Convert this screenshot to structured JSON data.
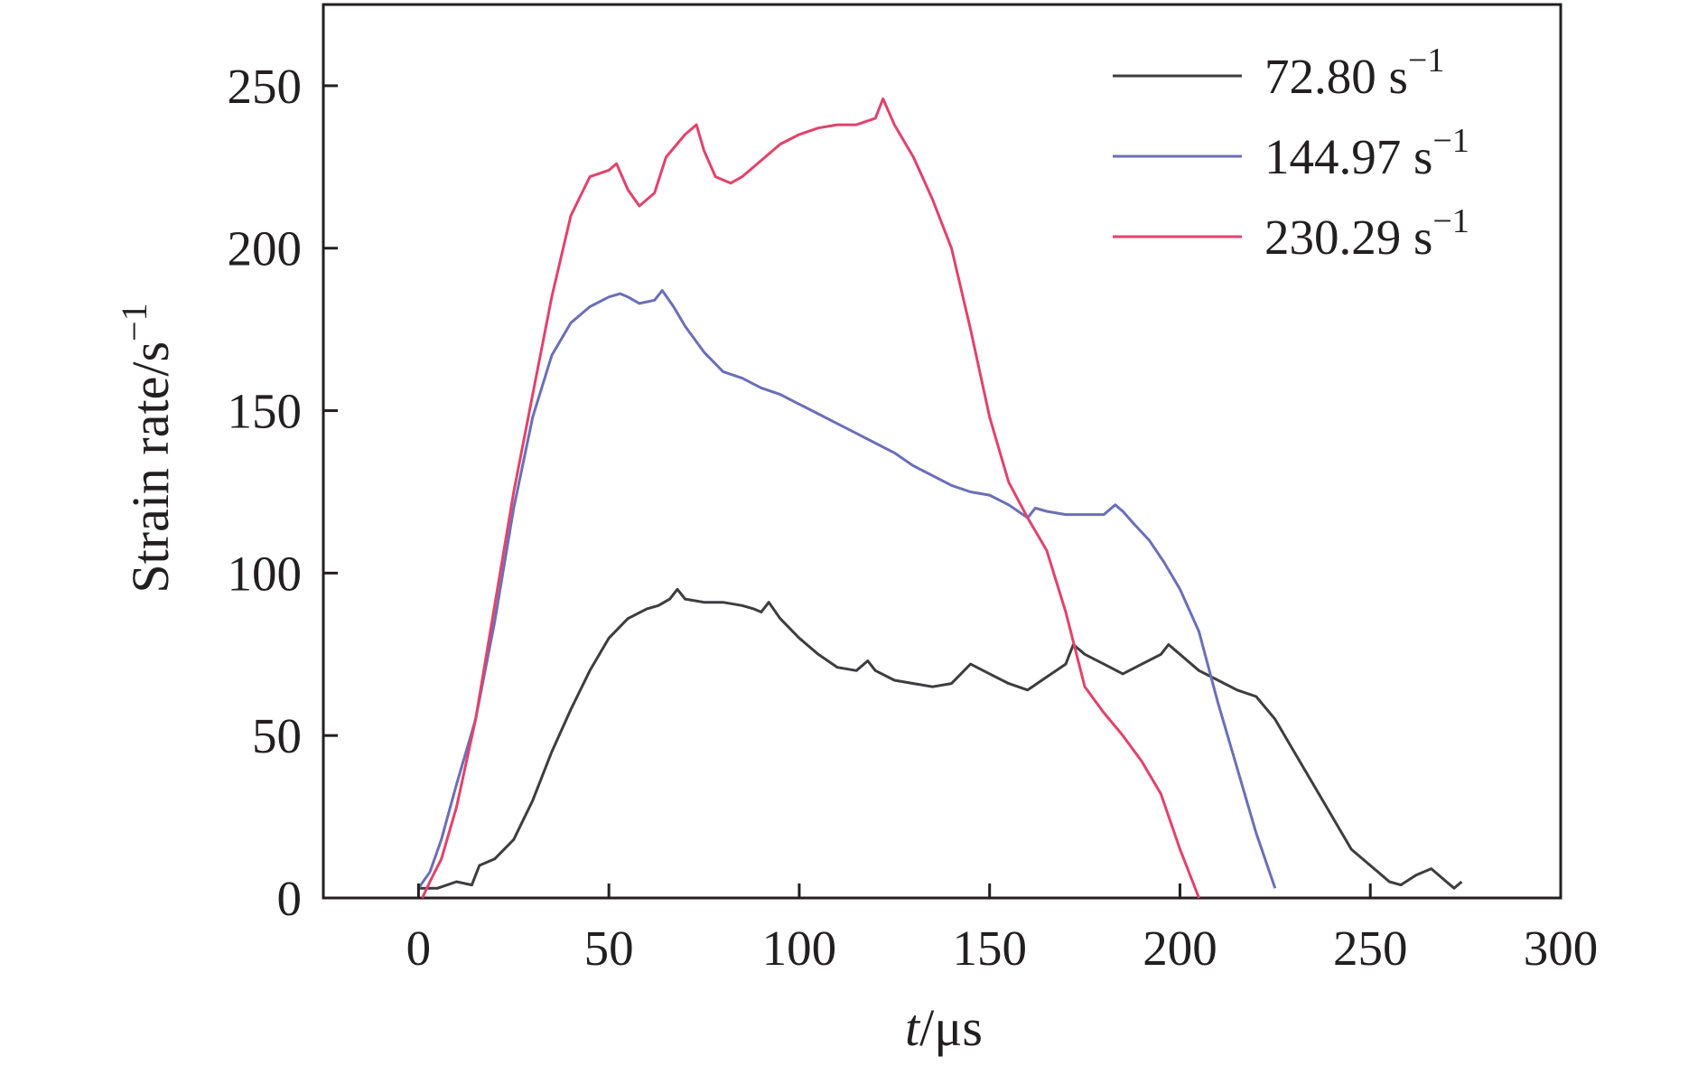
{
  "chart_data": {
    "type": "line",
    "xlabel": {
      "var": "t",
      "unit": "/μs"
    },
    "ylabel": {
      "text": "Strain rate/s",
      "sup": "−1"
    },
    "xlim": [
      -25,
      300
    ],
    "ylim": [
      0,
      275
    ],
    "x_ticks": [
      "0",
      "50",
      "100",
      "150",
      "200",
      "250",
      "300"
    ],
    "y_ticks": [
      "0",
      "50",
      "100",
      "150",
      "200",
      "250"
    ],
    "grid": false,
    "legend_position": "top-right",
    "series": [
      {
        "name": "72.80 s",
        "name_sup": "−1",
        "color": "#3d3d40",
        "points": [
          [
            0,
            3
          ],
          [
            5,
            3
          ],
          [
            10,
            5
          ],
          [
            14,
            4
          ],
          [
            16,
            10
          ],
          [
            20,
            12
          ],
          [
            25,
            18
          ],
          [
            30,
            30
          ],
          [
            35,
            45
          ],
          [
            40,
            58
          ],
          [
            45,
            70
          ],
          [
            50,
            80
          ],
          [
            55,
            86
          ],
          [
            60,
            89
          ],
          [
            63,
            90
          ],
          [
            66,
            92
          ],
          [
            68,
            95
          ],
          [
            70,
            92
          ],
          [
            75,
            91
          ],
          [
            80,
            91
          ],
          [
            85,
            90
          ],
          [
            88,
            89
          ],
          [
            90,
            88
          ],
          [
            92,
            91
          ],
          [
            95,
            86
          ],
          [
            100,
            80
          ],
          [
            105,
            75
          ],
          [
            110,
            71
          ],
          [
            115,
            70
          ],
          [
            118,
            73
          ],
          [
            120,
            70
          ],
          [
            125,
            67
          ],
          [
            130,
            66
          ],
          [
            135,
            65
          ],
          [
            140,
            66
          ],
          [
            145,
            72
          ],
          [
            150,
            69
          ],
          [
            155,
            66
          ],
          [
            160,
            64
          ],
          [
            165,
            68
          ],
          [
            170,
            72
          ],
          [
            172,
            78
          ],
          [
            175,
            75
          ],
          [
            180,
            72
          ],
          [
            185,
            69
          ],
          [
            190,
            72
          ],
          [
            195,
            75
          ],
          [
            197,
            78
          ],
          [
            200,
            75
          ],
          [
            205,
            70
          ],
          [
            210,
            67
          ],
          [
            215,
            64
          ],
          [
            220,
            62
          ],
          [
            225,
            55
          ],
          [
            230,
            45
          ],
          [
            235,
            35
          ],
          [
            240,
            25
          ],
          [
            245,
            15
          ],
          [
            250,
            10
          ],
          [
            252,
            8
          ],
          [
            255,
            5
          ],
          [
            258,
            4
          ],
          [
            262,
            7
          ],
          [
            266,
            9
          ],
          [
            270,
            5
          ],
          [
            272,
            3
          ],
          [
            274,
            5
          ]
        ]
      },
      {
        "name": "144.97 s",
        "name_sup": "−1",
        "color": "#6a6fb8",
        "points": [
          [
            0,
            3
          ],
          [
            3,
            8
          ],
          [
            6,
            18
          ],
          [
            10,
            35
          ],
          [
            15,
            55
          ],
          [
            20,
            85
          ],
          [
            25,
            120
          ],
          [
            30,
            148
          ],
          [
            35,
            167
          ],
          [
            40,
            177
          ],
          [
            45,
            182
          ],
          [
            50,
            185
          ],
          [
            53,
            186
          ],
          [
            55,
            185
          ],
          [
            58,
            183
          ],
          [
            62,
            184
          ],
          [
            64,
            187
          ],
          [
            67,
            182
          ],
          [
            70,
            176
          ],
          [
            75,
            168
          ],
          [
            80,
            162
          ],
          [
            85,
            160
          ],
          [
            90,
            157
          ],
          [
            95,
            155
          ],
          [
            100,
            152
          ],
          [
            105,
            149
          ],
          [
            110,
            146
          ],
          [
            115,
            143
          ],
          [
            120,
            140
          ],
          [
            125,
            137
          ],
          [
            130,
            133
          ],
          [
            135,
            130
          ],
          [
            140,
            127
          ],
          [
            145,
            125
          ],
          [
            150,
            124
          ],
          [
            155,
            121
          ],
          [
            160,
            117
          ],
          [
            162,
            120
          ],
          [
            165,
            119
          ],
          [
            170,
            118
          ],
          [
            175,
            118
          ],
          [
            180,
            118
          ],
          [
            183,
            121
          ],
          [
            185,
            119
          ],
          [
            188,
            115
          ],
          [
            192,
            110
          ],
          [
            196,
            103
          ],
          [
            200,
            95
          ],
          [
            205,
            82
          ],
          [
            210,
            60
          ],
          [
            215,
            40
          ],
          [
            220,
            20
          ],
          [
            225,
            3
          ]
        ]
      },
      {
        "name": "230.29 s",
        "name_sup": "−1",
        "color": "#e2426a",
        "points": [
          [
            1,
            0
          ],
          [
            3,
            5
          ],
          [
            6,
            12
          ],
          [
            10,
            28
          ],
          [
            15,
            55
          ],
          [
            20,
            90
          ],
          [
            25,
            125
          ],
          [
            30,
            155
          ],
          [
            35,
            185
          ],
          [
            40,
            210
          ],
          [
            45,
            222
          ],
          [
            50,
            224
          ],
          [
            52,
            226
          ],
          [
            55,
            218
          ],
          [
            58,
            213
          ],
          [
            62,
            217
          ],
          [
            65,
            228
          ],
          [
            70,
            235
          ],
          [
            73,
            238
          ],
          [
            75,
            230
          ],
          [
            78,
            222
          ],
          [
            82,
            220
          ],
          [
            85,
            222
          ],
          [
            90,
            227
          ],
          [
            95,
            232
          ],
          [
            100,
            235
          ],
          [
            105,
            237
          ],
          [
            110,
            238
          ],
          [
            115,
            238
          ],
          [
            120,
            240
          ],
          [
            122,
            246
          ],
          [
            125,
            238
          ],
          [
            130,
            228
          ],
          [
            135,
            215
          ],
          [
            140,
            200
          ],
          [
            145,
            175
          ],
          [
            150,
            148
          ],
          [
            155,
            128
          ],
          [
            160,
            117
          ],
          [
            165,
            107
          ],
          [
            170,
            88
          ],
          [
            175,
            65
          ],
          [
            180,
            57
          ],
          [
            185,
            50
          ],
          [
            190,
            42
          ],
          [
            195,
            32
          ],
          [
            200,
            15
          ],
          [
            205,
            0
          ]
        ]
      }
    ]
  }
}
